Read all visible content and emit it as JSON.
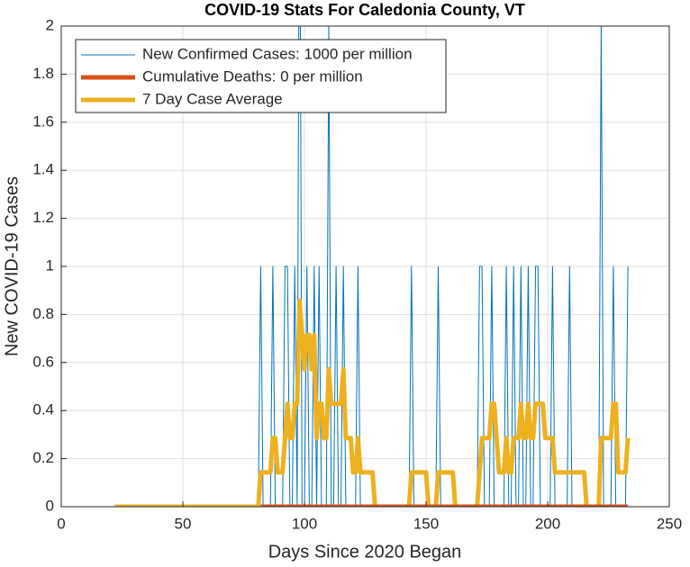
{
  "chart_data": {
    "type": "line",
    "title": "COVID-19 Stats For Caledonia County, VT",
    "x_label": "Days Since 2020 Began",
    "y_label": "New COVID-19 Cases",
    "xlim": [
      0,
      250
    ],
    "xticks": [
      0,
      50,
      100,
      150,
      200,
      250
    ],
    "ylim": [
      0,
      2
    ],
    "yticks": [
      0,
      0.2,
      0.4,
      0.6,
      0.8,
      1,
      1.2,
      1.4,
      1.6,
      1.8,
      2
    ],
    "grid": true,
    "legend": "upper left",
    "series": [
      {
        "name": "New Confirmed Cases: 1000 per million",
        "color": "#0072bd",
        "width": 1,
        "x": [
          22,
          81,
          82,
          83,
          86,
          87,
          88,
          91,
          92,
          93,
          94,
          95,
          96,
          97,
          98,
          99,
          100,
          101,
          102,
          103,
          104,
          105,
          106,
          107,
          109,
          110,
          111,
          112,
          113,
          114,
          115,
          116,
          117,
          121,
          122,
          123,
          143,
          144,
          145,
          154,
          155,
          156,
          171,
          172,
          173,
          174,
          176,
          177,
          178,
          182,
          183,
          184,
          185,
          186,
          187,
          188,
          189,
          190,
          191,
          192,
          193,
          194,
          195,
          196,
          197,
          201,
          202,
          203,
          208,
          209,
          210,
          221,
          222,
          223,
          226,
          227,
          228,
          232,
          233
        ],
        "values": [
          0,
          0,
          1,
          0,
          0,
          1,
          0,
          0,
          1,
          1,
          0,
          0,
          1,
          0,
          3,
          0,
          0,
          1,
          0,
          0,
          1,
          0,
          1,
          0,
          0,
          2,
          0,
          0,
          1,
          0,
          0,
          1,
          0,
          0,
          1,
          0,
          0,
          1,
          0,
          0,
          1,
          0,
          0,
          1,
          1,
          0,
          0,
          1,
          0,
          0,
          1,
          0,
          0,
          1,
          0,
          0,
          1,
          0,
          0,
          1,
          0,
          0,
          1,
          1,
          0,
          0,
          1,
          0,
          0,
          1,
          0,
          0,
          2,
          0,
          0,
          1,
          0,
          0,
          1
        ]
      },
      {
        "name": "Cumulative Deaths: 0 per million",
        "color": "#d95319",
        "width": 5,
        "x": [
          82,
          233
        ],
        "values": [
          0,
          0
        ]
      },
      {
        "name": "7 Day Case Average",
        "color": "#edb120",
        "width": 5,
        "x": [
          22,
          81,
          82,
          86,
          87,
          88,
          89,
          91,
          92,
          93,
          94,
          95,
          96,
          97,
          98,
          99,
          100,
          101,
          102,
          103,
          104,
          105,
          106,
          107,
          108,
          109,
          110,
          111,
          115,
          116,
          117,
          119,
          120,
          121,
          122,
          123,
          128,
          129,
          143,
          144,
          150,
          151,
          154,
          155,
          161,
          162,
          171,
          172,
          173,
          176,
          177,
          178,
          179,
          180,
          182,
          183,
          184,
          185,
          186,
          188,
          189,
          190,
          191,
          192,
          193,
          194,
          195,
          198,
          199,
          202,
          203,
          215,
          216,
          221,
          222,
          226,
          227,
          228,
          229,
          232,
          233
        ],
        "values": [
          0,
          0,
          0.1429,
          0.1429,
          0.2857,
          0.2857,
          0.1429,
          0.1429,
          0.2857,
          0.4286,
          0.2857,
          0.2857,
          0.4286,
          0.4286,
          0.8571,
          0.7143,
          0.5714,
          0.7143,
          0.7143,
          0.5714,
          0.7143,
          0.2857,
          0.4286,
          0.4286,
          0.2857,
          0.2857,
          0.5714,
          0.4286,
          0.4286,
          0.5714,
          0.2857,
          0.2857,
          0.1429,
          0.1429,
          0.2857,
          0.1429,
          0.1429,
          0,
          0,
          0.1429,
          0.1429,
          0,
          0,
          0.1429,
          0.1429,
          0,
          0,
          0.1429,
          0.2857,
          0.2857,
          0.4286,
          0.4286,
          0.2857,
          0.1429,
          0.1429,
          0.2857,
          0.1429,
          0.1429,
          0.2857,
          0.2857,
          0.4286,
          0.2857,
          0.2857,
          0.4286,
          0.2857,
          0.2857,
          0.4286,
          0.4286,
          0.2857,
          0.2857,
          0.1429,
          0.1429,
          0,
          0,
          0.2857,
          0.2857,
          0.4286,
          0.4286,
          0.1429,
          0.1429,
          0.2857
        ]
      }
    ]
  }
}
